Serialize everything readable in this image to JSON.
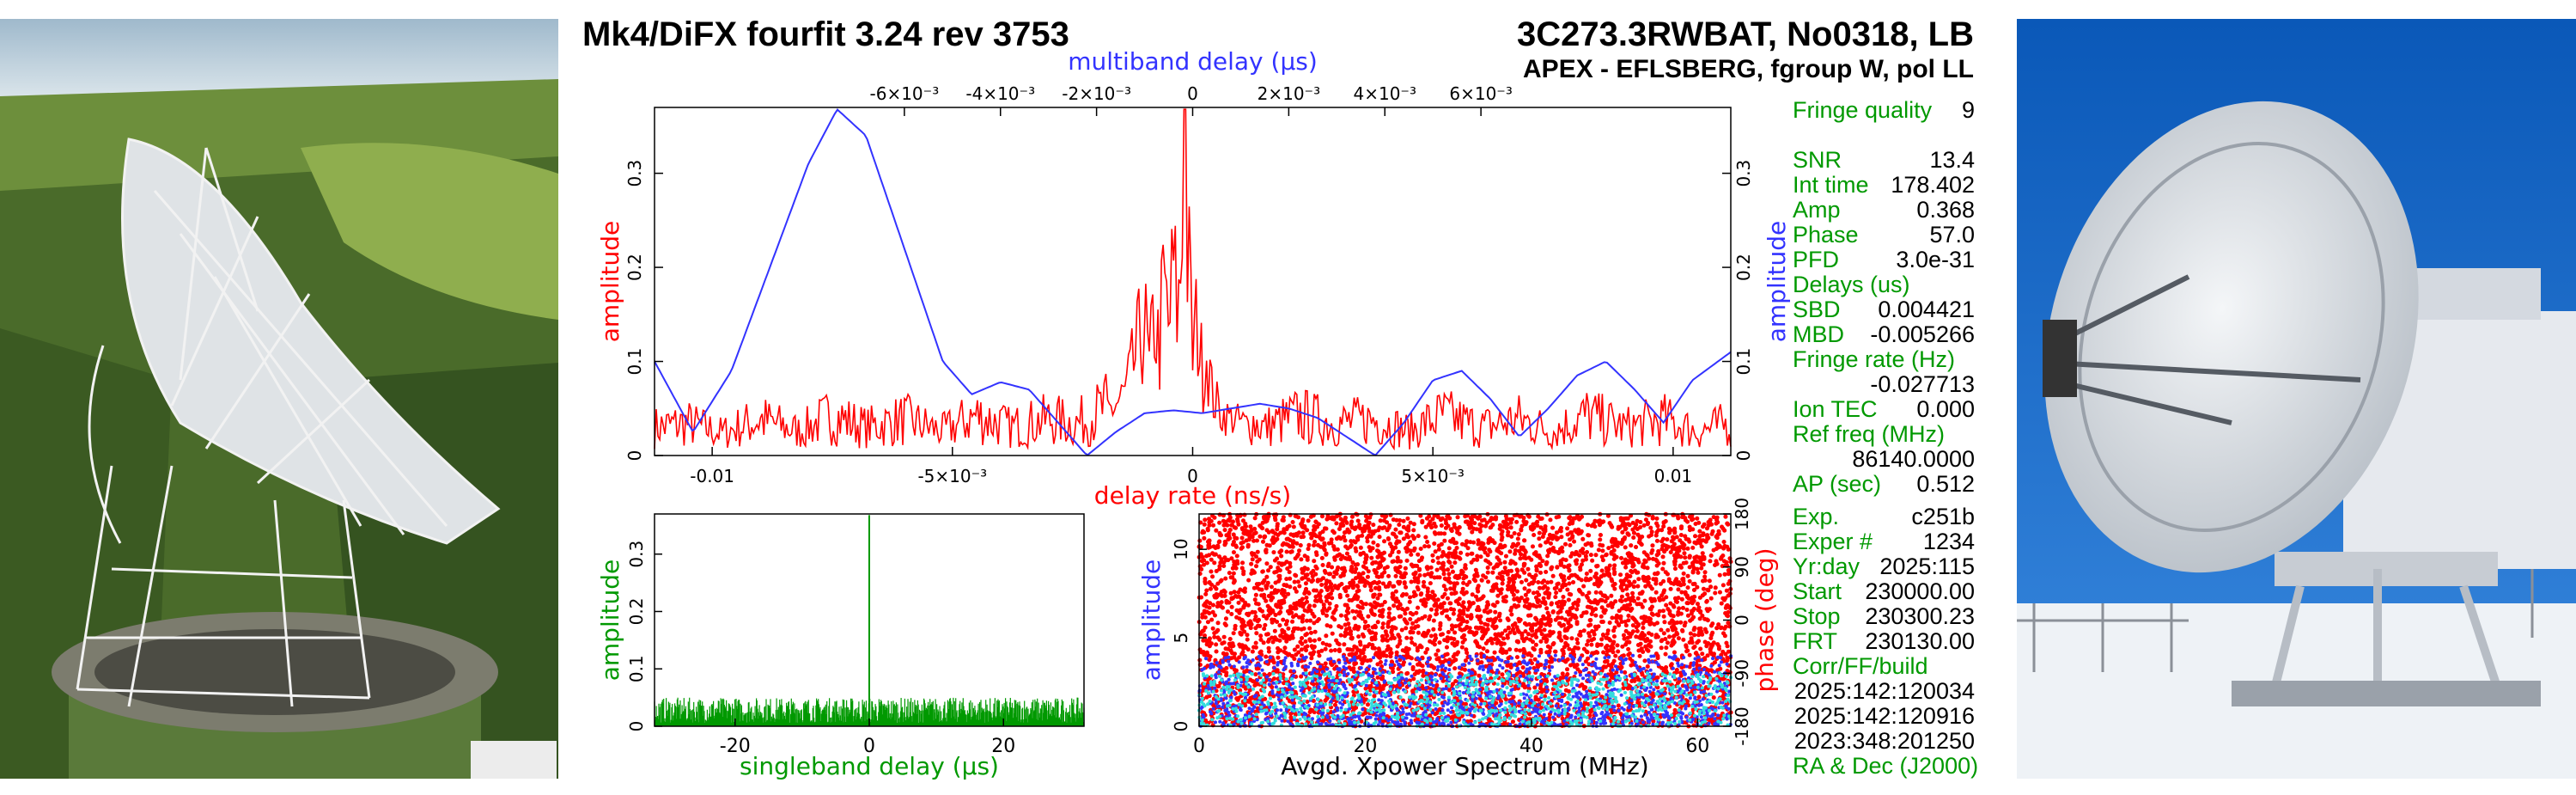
{
  "header": {
    "title": "Mk4/DiFX fourfit 3.24 rev 3753",
    "source": "3C273.3RWBAT, No0318, LB",
    "subtitle": "APEX - EFLSBERG, fgroup W, pol LL"
  },
  "images": {
    "left": "effelsberg-radio-telescope",
    "right": "apex-antenna"
  },
  "colors": {
    "red": "#ff0000",
    "blue": "#3333ff",
    "green": "#009900",
    "cyan": "#33dddd",
    "text_green": "#009900"
  },
  "stats": {
    "fringe_quality_label": "Fringe quality",
    "fringe_quality": "9",
    "snr_label": "SNR",
    "snr": "13.4",
    "int_time_label": "Int time",
    "int_time": "178.402",
    "amp_label": "Amp",
    "amp": "0.368",
    "phase_label": "Phase",
    "phase": "57.0",
    "pfd_label": "PFD",
    "pfd": "3.0e-31",
    "delays_label": "Delays (us)",
    "sbd_label": "SBD",
    "sbd": "0.004421",
    "mbd_label": "MBD",
    "mbd": "-0.005266",
    "fringe_rate_label": "Fringe rate (Hz)",
    "fringe_rate": "-0.027713",
    "ion_tec_label": "Ion TEC",
    "ion_tec": "0.000",
    "ref_freq_label": "Ref freq (MHz)",
    "ref_freq": "86140.0000",
    "ap_label": "AP (sec)",
    "ap": "0.512",
    "exp_label": "Exp.",
    "exp": "c251b",
    "exper_label": "Exper #",
    "exper": "1234",
    "yrday_label": "Yr:day",
    "yrday": "2025:115",
    "start_label": "Start",
    "start": "230000.00",
    "stop_label": "Stop",
    "stop": "230300.23",
    "frt_label": "FRT",
    "frt": "230130.00",
    "corr_label": "Corr/FF/build",
    "corr_1": "2025:142:120034",
    "corr_2": "2025:142:120916",
    "corr_3": "2023:348:201250",
    "radec_label": "RA & Dec (J2000)"
  },
  "chart_data": [
    {
      "type": "line",
      "name": "delay-rate-and-multiband-delay",
      "xlabel": "delay rate (ns/s)",
      "x2label": "multiband delay (μs)",
      "ylabel": "amplitude",
      "y2label": "amplitude",
      "xlim": [
        -0.0112,
        0.0112
      ],
      "x2lim": [
        -0.0112,
        0.0112
      ],
      "ylim": [
        0,
        0.37
      ],
      "x_ticks": [
        -0.01,
        -0.005,
        0,
        0.005,
        0.01
      ],
      "x_tick_labels": [
        "-0.01",
        "-5×10⁻³",
        "0",
        "5×10⁻³",
        "0.01"
      ],
      "x2_ticks": [
        -0.006,
        -0.004,
        -0.002,
        0,
        0.002,
        0.004,
        0.006
      ],
      "x2_tick_labels": [
        "-6×10⁻³",
        "-4×10⁻³",
        "-2×10⁻³",
        "0",
        "2×10⁻³",
        "4×10⁻³",
        "6×10⁻³"
      ],
      "y_ticks": [
        0,
        0.1,
        0.2,
        0.3
      ],
      "y_tick_labels": [
        "0",
        "0.1",
        "0.2",
        "0.3"
      ],
      "series": [
        {
          "color": "#ff0000",
          "axis": "bottom",
          "points": [
            [
              -0.0112,
              0.035
            ],
            [
              -0.0105,
              0.04
            ],
            [
              -0.0098,
              0.028
            ],
            [
              -0.009,
              0.045
            ],
            [
              -0.0082,
              0.03
            ],
            [
              -0.0075,
              0.05
            ],
            [
              -0.0068,
              0.035
            ],
            [
              -0.006,
              0.045
            ],
            [
              -0.0052,
              0.03
            ],
            [
              -0.0045,
              0.05
            ],
            [
              -0.0038,
              0.035
            ],
            [
              -0.003,
              0.045
            ],
            [
              -0.0024,
              0.04
            ],
            [
              -0.0018,
              0.06
            ],
            [
              -0.0014,
              0.09
            ],
            [
              -0.0012,
              0.14
            ],
            [
              -0.001,
              0.2
            ],
            [
              -0.0009,
              0.12
            ],
            [
              -0.0008,
              0.21
            ],
            [
              -0.0007,
              0.15
            ],
            [
              -0.0006,
              0.25
            ],
            [
              -0.0005,
              0.18
            ],
            [
              -0.0004,
              0.27
            ],
            [
              -0.0003,
              0.2
            ],
            [
              -0.0002,
              0.35
            ],
            [
              -0.00015,
              0.368
            ],
            [
              -0.0001,
              0.3
            ],
            [
              0.0,
              0.15
            ],
            [
              0.0001,
              0.2
            ],
            [
              0.0002,
              0.12
            ],
            [
              0.0003,
              0.16
            ],
            [
              0.0004,
              0.09
            ],
            [
              0.0006,
              0.06
            ],
            [
              0.001,
              0.05
            ],
            [
              0.0015,
              0.035
            ],
            [
              0.0022,
              0.05
            ],
            [
              0.003,
              0.04
            ],
            [
              0.0038,
              0.045
            ],
            [
              0.0045,
              0.03
            ],
            [
              0.0052,
              0.05
            ],
            [
              0.006,
              0.035
            ],
            [
              0.0068,
              0.045
            ],
            [
              0.0075,
              0.03
            ],
            [
              0.0082,
              0.05
            ],
            [
              0.009,
              0.035
            ],
            [
              0.0098,
              0.045
            ],
            [
              0.0105,
              0.03
            ],
            [
              0.0112,
              0.04
            ]
          ]
        },
        {
          "color": "#3333ff",
          "axis": "top",
          "points": [
            [
              -0.0112,
              0.1
            ],
            [
              -0.0104,
              0.025
            ],
            [
              -0.0096,
              0.09
            ],
            [
              -0.0088,
              0.2
            ],
            [
              -0.008,
              0.31
            ],
            [
              -0.0074,
              0.368
            ],
            [
              -0.0068,
              0.34
            ],
            [
              -0.006,
              0.22
            ],
            [
              -0.0052,
              0.1
            ],
            [
              -0.0046,
              0.065
            ],
            [
              -0.004,
              0.078
            ],
            [
              -0.0034,
              0.07
            ],
            [
              -0.0028,
              0.035
            ],
            [
              -0.0022,
              0.0
            ],
            [
              -0.0016,
              0.025
            ],
            [
              -0.001,
              0.045
            ],
            [
              -0.0004,
              0.048
            ],
            [
              0.0002,
              0.045
            ],
            [
              0.0008,
              0.05
            ],
            [
              0.0014,
              0.055
            ],
            [
              0.002,
              0.05
            ],
            [
              0.0026,
              0.04
            ],
            [
              0.0032,
              0.02
            ],
            [
              0.0038,
              0.0
            ],
            [
              0.0044,
              0.035
            ],
            [
              0.005,
              0.08
            ],
            [
              0.0056,
              0.09
            ],
            [
              0.0062,
              0.06
            ],
            [
              0.0068,
              0.02
            ],
            [
              0.0074,
              0.05
            ],
            [
              0.008,
              0.085
            ],
            [
              0.0086,
              0.1
            ],
            [
              0.0092,
              0.07
            ],
            [
              0.0098,
              0.035
            ],
            [
              0.0104,
              0.08
            ],
            [
              0.0112,
              0.11
            ]
          ]
        }
      ]
    },
    {
      "type": "bar",
      "name": "singleband-delay",
      "xlabel": "singleband delay (μs)",
      "ylabel": "amplitude",
      "xlim": [
        -32,
        32
      ],
      "ylim": [
        0,
        0.37
      ],
      "x_ticks": [
        -20,
        0,
        20
      ],
      "x_tick_labels": [
        "-20",
        "0",
        "20"
      ],
      "y_ticks": [
        0,
        0.1,
        0.2,
        0.3
      ],
      "y_tick_labels": [
        "0",
        "0.1",
        "0.2",
        "0.3"
      ],
      "series": [
        {
          "color": "#009900",
          "noise_level": 0.04,
          "peak_x": 0,
          "peak_y": 0.368
        }
      ]
    },
    {
      "type": "scatter",
      "name": "avgd-xpower-spectrum",
      "xlabel": "Avgd. Xpower Spectrum (MHz)",
      "ylabel": "amplitude",
      "y2label": "phase (deg)",
      "xlim": [
        0,
        64
      ],
      "ylim": [
        0,
        12
      ],
      "y2lim": [
        -180,
        180
      ],
      "x_ticks": [
        0,
        20,
        40,
        60
      ],
      "x_tick_labels": [
        "0",
        "20",
        "40",
        "60"
      ],
      "y_ticks": [
        0,
        5,
        10
      ],
      "y_tick_labels": [
        "0",
        "5",
        "10"
      ],
      "y2_ticks": [
        -180,
        -90,
        0,
        90,
        180
      ],
      "y2_tick_labels": [
        "-180",
        "-90",
        "0",
        "90",
        "180"
      ],
      "series": [
        {
          "color": "#ff0000",
          "axis": "phase",
          "range": [
            -180,
            180
          ]
        },
        {
          "color": "#3333ff",
          "axis": "amplitude",
          "range": [
            0,
            4
          ]
        },
        {
          "color": "#33dddd",
          "axis": "amplitude",
          "range": [
            0,
            3
          ]
        }
      ]
    }
  ]
}
